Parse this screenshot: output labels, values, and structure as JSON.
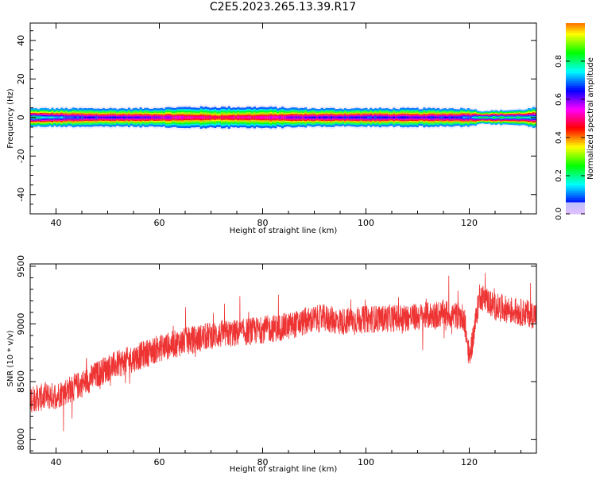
{
  "title": "C2E5.2023.265.13.39.R17",
  "chart_data": [
    {
      "type": "heatmap",
      "xlabel": "Height of straight line (km)",
      "ylabel": "Frequency (Hz)",
      "xlim": [
        35,
        133
      ],
      "ylim": [
        -50,
        49
      ],
      "xticks": [
        "40",
        "60",
        "80",
        "100",
        "120"
      ],
      "yticks": [
        "40",
        "20",
        "0",
        "-20",
        "-40"
      ],
      "colorbar": {
        "label": "Normalized spectral amplitude",
        "range": [
          0,
          1
        ],
        "ticks": [
          "0.0",
          "0.2",
          "0.4",
          "0.6",
          "0.8"
        ]
      },
      "band": {
        "heights": [
          35,
          45,
          55,
          65,
          72,
          80,
          90,
          100,
          110,
          120,
          122,
          130,
          133
        ],
        "half_width_hz": [
          3.5,
          3.5,
          3.5,
          4,
          4,
          4,
          3.5,
          3.5,
          3.5,
          3.5,
          2.5,
          3,
          4
        ],
        "peak_amplitude": [
          0.9,
          0.75,
          0.7,
          0.6,
          0.55,
          0.6,
          0.7,
          0.75,
          0.7,
          0.8,
          0.95,
          0.9,
          0.85
        ]
      }
    },
    {
      "type": "line",
      "xlabel": "Height of straight line (km)",
      "ylabel": "SNR (10 * v/v)",
      "xlim": [
        35,
        133
      ],
      "ylim": [
        7880,
        9520
      ],
      "xticks": [
        "40",
        "60",
        "80",
        "100",
        "120"
      ],
      "yticks": [
        "9500",
        "9000",
        "8500",
        "8000"
      ],
      "color": "#ee3333",
      "trend": {
        "heights": [
          35,
          40,
          45,
          50,
          55,
          60,
          65,
          70,
          75,
          80,
          85,
          90,
          92,
          95,
          100,
          105,
          110,
          115,
          119,
          120,
          121,
          122,
          125,
          130,
          133
        ],
        "snr": [
          8350,
          8380,
          8480,
          8620,
          8700,
          8790,
          8850,
          8900,
          8920,
          8950,
          8980,
          9040,
          9050,
          9020,
          9040,
          9050,
          9060,
          9090,
          9060,
          8700,
          8950,
          9250,
          9150,
          9100,
          9080
        ]
      },
      "noise_amplitude": 120
    }
  ]
}
